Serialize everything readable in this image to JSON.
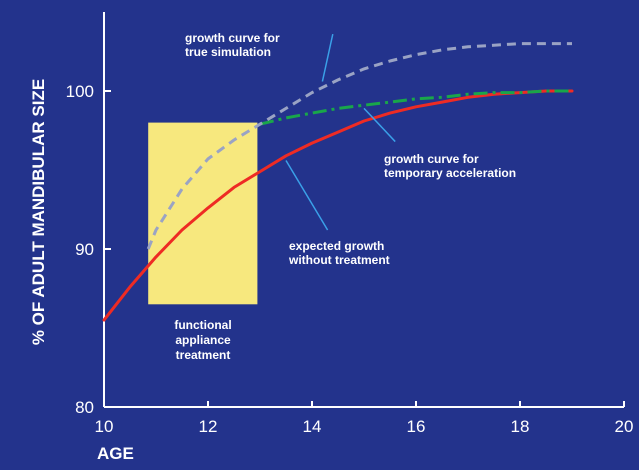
{
  "chart_data": {
    "type": "line",
    "xlabel": "AGE",
    "ylabel": "% OF ADULT MANDIBULAR SIZE",
    "xlim": [
      10,
      20
    ],
    "ylim": [
      80,
      105
    ],
    "x_ticks": [
      "10",
      "12",
      "14",
      "16",
      "18",
      "20"
    ],
    "y_ticks": [
      "80",
      "90",
      "100"
    ],
    "grid": false,
    "colors": {
      "background": "#23338c",
      "axis": "#ffffff",
      "expected": "#ee2b24",
      "true_stimulation": "#9aa3c4",
      "temporary": "#19a64a",
      "treatment_box": "#f7e87e",
      "pointer": "#3aa0e8"
    },
    "series": [
      {
        "key": "expected",
        "x": [
          10,
          10.5,
          11,
          11.5,
          12,
          12.5,
          13,
          13.5,
          14,
          14.5,
          15,
          15.5,
          16,
          16.5,
          17,
          17.5,
          18,
          18.5,
          19
        ],
        "y": [
          85.5,
          87.6,
          89.5,
          91.2,
          92.6,
          93.9,
          94.9,
          95.9,
          96.7,
          97.4,
          98.1,
          98.6,
          99.0,
          99.3,
          99.6,
          99.8,
          99.9,
          100.0,
          100.0
        ]
      },
      {
        "key": "true_stimulation",
        "x": [
          10.85,
          11,
          11.5,
          12,
          12.5,
          13,
          13.5,
          14,
          14.5,
          15,
          15.5,
          16,
          16.5,
          17,
          17.5,
          18,
          18.5,
          19
        ],
        "y": [
          90.0,
          91.2,
          93.8,
          95.7,
          96.9,
          97.9,
          98.9,
          99.9,
          100.7,
          101.4,
          101.9,
          102.3,
          102.6,
          102.8,
          102.9,
          103.0,
          103.0,
          103.0
        ]
      },
      {
        "key": "temporary",
        "x": [
          13,
          13.5,
          14,
          14.5,
          15,
          15.5,
          16,
          16.5,
          17,
          17.5,
          18,
          18.5,
          19
        ],
        "y": [
          97.9,
          98.3,
          98.6,
          98.9,
          99.1,
          99.3,
          99.5,
          99.6,
          99.8,
          99.9,
          99.9,
          100.0,
          100.0
        ]
      }
    ],
    "treatment_period": {
      "x": [
        10.85,
        12.95
      ],
      "y": [
        86.5,
        98.0
      ]
    },
    "annotations": {
      "true_stimulation": [
        "growth curve for",
        "true simulation"
      ],
      "temporary": [
        "growth curve for",
        "temporary acceleration"
      ],
      "expected": [
        "expected growth",
        "without treatment"
      ],
      "treatment": [
        "functional",
        "appliance",
        "treatment"
      ]
    }
  }
}
